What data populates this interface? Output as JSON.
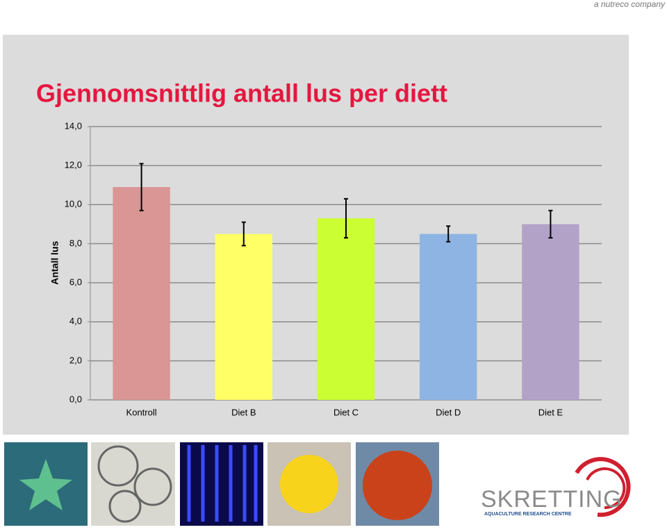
{
  "header": {
    "tagline": "a nutreco company"
  },
  "chart_data": {
    "type": "bar",
    "title": "Gjennomsnittlig antall lus per diett",
    "y_label": "Antall lus",
    "categories": [
      "Kontroll",
      "Diet B",
      "Diet C",
      "Diet D",
      "Diet E"
    ],
    "values": [
      10.9,
      8.5,
      9.3,
      8.5,
      9.0
    ],
    "errors": [
      1.2,
      0.6,
      1.0,
      0.4,
      0.7
    ],
    "colors": [
      "#d99694",
      "#ffff66",
      "#ccff33",
      "#8eb4e3",
      "#b3a2c7"
    ],
    "ylim": [
      0,
      14
    ],
    "yticks": [
      {
        "value": 0,
        "label": "0,0"
      },
      {
        "value": 2,
        "label": "2,0"
      },
      {
        "value": 4,
        "label": "4,0"
      },
      {
        "value": 6,
        "label": "6,0"
      },
      {
        "value": 8,
        "label": "8,0"
      },
      {
        "value": 10,
        "label": "10,0"
      },
      {
        "value": 12,
        "label": "12,0"
      },
      {
        "value": 14,
        "label": "14,0"
      }
    ],
    "grid": true
  },
  "logo": {
    "name": "SKRETTING",
    "subtitle": "AQUACULTURE RESEARCH CENTRE"
  }
}
